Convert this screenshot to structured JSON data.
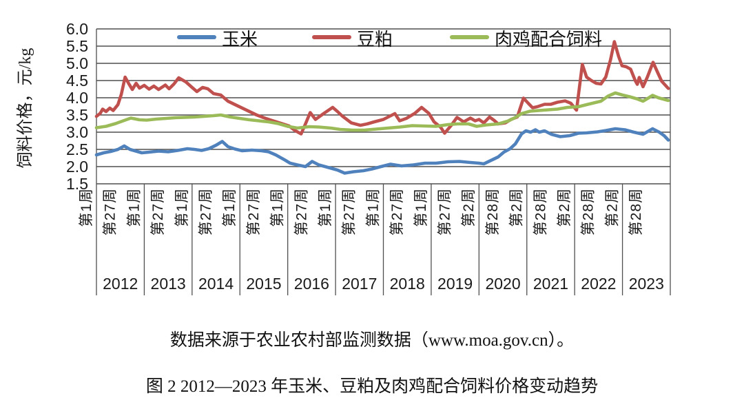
{
  "figure": {
    "background": "#ffffff",
    "grid_color": "#4f4f4f",
    "axis_color": "#4f4f4f"
  },
  "captions": {
    "source": "数据来源于农业农村部监测数据（www.moa.gov.cn）。",
    "figure": "图 2 2012—2023 年玉米、豆粕及肉鸡配合饲料价格变动趋势"
  },
  "chart_data": {
    "type": "line",
    "title": "",
    "ylabel": "饲料价格，元/kg",
    "xlabel": "",
    "ylim": [
      1.5,
      6.0
    ],
    "ytick_step": 0.5,
    "yticks": [
      "6.0",
      "5.5",
      "5.0",
      "4.5",
      "4.0",
      "3.5",
      "3.0",
      "2.5",
      "2.0",
      "1.5"
    ],
    "grid": true,
    "legend_position": "top",
    "x_unit": "year_decimal",
    "xlim": [
      2012,
      2024
    ],
    "x_week_tick_labels": [
      "第1周",
      "第27周",
      "第1周",
      "第27周",
      "第1周",
      "第27周",
      "第1周",
      "第27周",
      "第1周",
      "第27周",
      "第1周",
      "第27周",
      "第1周",
      "第27周",
      "第1周",
      "第27周",
      "第2周",
      "第28周",
      "第2周",
      "第28周",
      "第2周",
      "第28周",
      "第2周",
      "第28周"
    ],
    "x_year_labels": [
      "2012",
      "2013",
      "2014",
      "2015",
      "2016",
      "2017",
      "2018",
      "2019",
      "2020",
      "2021",
      "2022",
      "2023"
    ],
    "series": [
      {
        "name": "玉米",
        "key": "corn",
        "color": "#4F81BD",
        "points": [
          [
            2012.0,
            2.34
          ],
          [
            2012.15,
            2.4
          ],
          [
            2012.3,
            2.44
          ],
          [
            2012.45,
            2.5
          ],
          [
            2012.58,
            2.6
          ],
          [
            2012.7,
            2.5
          ],
          [
            2012.85,
            2.44
          ],
          [
            2012.95,
            2.4
          ],
          [
            2013.1,
            2.42
          ],
          [
            2013.3,
            2.45
          ],
          [
            2013.5,
            2.43
          ],
          [
            2013.7,
            2.47
          ],
          [
            2013.9,
            2.52
          ],
          [
            2014.05,
            2.5
          ],
          [
            2014.2,
            2.47
          ],
          [
            2014.35,
            2.52
          ],
          [
            2014.5,
            2.62
          ],
          [
            2014.63,
            2.73
          ],
          [
            2014.75,
            2.58
          ],
          [
            2014.9,
            2.51
          ],
          [
            2015.05,
            2.46
          ],
          [
            2015.25,
            2.48
          ],
          [
            2015.45,
            2.46
          ],
          [
            2015.6,
            2.43
          ],
          [
            2015.75,
            2.34
          ],
          [
            2015.93,
            2.2
          ],
          [
            2016.05,
            2.1
          ],
          [
            2016.2,
            2.05
          ],
          [
            2016.37,
            2.0
          ],
          [
            2016.51,
            2.15
          ],
          [
            2016.65,
            2.05
          ],
          [
            2016.86,
            1.97
          ],
          [
            2017.04,
            1.9
          ],
          [
            2017.19,
            1.81
          ],
          [
            2017.37,
            1.85
          ],
          [
            2017.58,
            1.88
          ],
          [
            2017.76,
            1.93
          ],
          [
            2017.95,
            2.0
          ],
          [
            2018.15,
            2.07
          ],
          [
            2018.38,
            2.02
          ],
          [
            2018.63,
            2.05
          ],
          [
            2018.87,
            2.1
          ],
          [
            2019.1,
            2.1
          ],
          [
            2019.35,
            2.14
          ],
          [
            2019.59,
            2.15
          ],
          [
            2019.82,
            2.12
          ],
          [
            2020.0,
            2.1
          ],
          [
            2020.1,
            2.08
          ],
          [
            2020.25,
            2.18
          ],
          [
            2020.4,
            2.28
          ],
          [
            2020.52,
            2.42
          ],
          [
            2020.65,
            2.52
          ],
          [
            2020.76,
            2.66
          ],
          [
            2020.89,
            2.95
          ],
          [
            2020.98,
            3.04
          ],
          [
            2021.08,
            3.0
          ],
          [
            2021.18,
            3.07
          ],
          [
            2021.26,
            3.0
          ],
          [
            2021.37,
            3.04
          ],
          [
            2021.51,
            2.94
          ],
          [
            2021.7,
            2.87
          ],
          [
            2021.9,
            2.9
          ],
          [
            2022.08,
            2.97
          ],
          [
            2022.25,
            2.98
          ],
          [
            2022.48,
            3.01
          ],
          [
            2022.66,
            3.05
          ],
          [
            2022.85,
            3.1
          ],
          [
            2023.05,
            3.07
          ],
          [
            2023.24,
            3.0
          ],
          [
            2023.43,
            2.94
          ],
          [
            2023.63,
            3.1
          ],
          [
            2023.77,
            3.0
          ],
          [
            2023.87,
            2.9
          ],
          [
            2023.96,
            2.77
          ]
        ]
      },
      {
        "name": "豆粕",
        "key": "soybean-meal",
        "color": "#C0504D",
        "points": [
          [
            2012.0,
            3.46
          ],
          [
            2012.08,
            3.55
          ],
          [
            2012.13,
            3.67
          ],
          [
            2012.2,
            3.6
          ],
          [
            2012.28,
            3.7
          ],
          [
            2012.35,
            3.63
          ],
          [
            2012.45,
            3.8
          ],
          [
            2012.52,
            4.1
          ],
          [
            2012.6,
            4.6
          ],
          [
            2012.68,
            4.4
          ],
          [
            2012.75,
            4.24
          ],
          [
            2012.83,
            4.42
          ],
          [
            2012.9,
            4.28
          ],
          [
            2013.0,
            4.36
          ],
          [
            2013.1,
            4.25
          ],
          [
            2013.2,
            4.34
          ],
          [
            2013.3,
            4.24
          ],
          [
            2013.44,
            4.37
          ],
          [
            2013.52,
            4.26
          ],
          [
            2013.62,
            4.4
          ],
          [
            2013.72,
            4.58
          ],
          [
            2013.87,
            4.46
          ],
          [
            2014.0,
            4.3
          ],
          [
            2014.1,
            4.18
          ],
          [
            2014.22,
            4.3
          ],
          [
            2014.33,
            4.26
          ],
          [
            2014.45,
            4.12
          ],
          [
            2014.6,
            4.08
          ],
          [
            2014.75,
            3.9
          ],
          [
            2014.9,
            3.8
          ],
          [
            2015.05,
            3.7
          ],
          [
            2015.2,
            3.6
          ],
          [
            2015.35,
            3.5
          ],
          [
            2015.5,
            3.42
          ],
          [
            2015.65,
            3.35
          ],
          [
            2015.85,
            3.26
          ],
          [
            2016.03,
            3.18
          ],
          [
            2016.15,
            3.05
          ],
          [
            2016.28,
            2.95
          ],
          [
            2016.37,
            3.24
          ],
          [
            2016.47,
            3.57
          ],
          [
            2016.58,
            3.37
          ],
          [
            2016.76,
            3.55
          ],
          [
            2016.94,
            3.72
          ],
          [
            2017.04,
            3.6
          ],
          [
            2017.14,
            3.47
          ],
          [
            2017.33,
            3.27
          ],
          [
            2017.52,
            3.2
          ],
          [
            2017.66,
            3.24
          ],
          [
            2017.81,
            3.3
          ],
          [
            2018.0,
            3.37
          ],
          [
            2018.24,
            3.54
          ],
          [
            2018.34,
            3.33
          ],
          [
            2018.48,
            3.4
          ],
          [
            2018.66,
            3.55
          ],
          [
            2018.8,
            3.72
          ],
          [
            2018.95,
            3.55
          ],
          [
            2019.06,
            3.3
          ],
          [
            2019.2,
            3.14
          ],
          [
            2019.28,
            2.97
          ],
          [
            2019.42,
            3.2
          ],
          [
            2019.54,
            3.43
          ],
          [
            2019.68,
            3.3
          ],
          [
            2019.82,
            3.41
          ],
          [
            2019.92,
            3.33
          ],
          [
            2020.0,
            3.37
          ],
          [
            2020.1,
            3.27
          ],
          [
            2020.22,
            3.44
          ],
          [
            2020.32,
            3.34
          ],
          [
            2020.4,
            3.24
          ],
          [
            2020.55,
            3.27
          ],
          [
            2020.67,
            3.37
          ],
          [
            2020.8,
            3.44
          ],
          [
            2020.93,
            3.99
          ],
          [
            2021.03,
            3.84
          ],
          [
            2021.12,
            3.71
          ],
          [
            2021.22,
            3.74
          ],
          [
            2021.37,
            3.81
          ],
          [
            2021.5,
            3.81
          ],
          [
            2021.64,
            3.87
          ],
          [
            2021.8,
            3.91
          ],
          [
            2021.92,
            3.84
          ],
          [
            2022.04,
            3.64
          ],
          [
            2022.16,
            4.97
          ],
          [
            2022.25,
            4.6
          ],
          [
            2022.35,
            4.5
          ],
          [
            2022.45,
            4.42
          ],
          [
            2022.55,
            4.4
          ],
          [
            2022.65,
            4.6
          ],
          [
            2022.75,
            5.1
          ],
          [
            2022.83,
            5.63
          ],
          [
            2022.92,
            5.2
          ],
          [
            2022.99,
            4.93
          ],
          [
            2023.08,
            4.9
          ],
          [
            2023.17,
            4.83
          ],
          [
            2023.27,
            4.49
          ],
          [
            2023.31,
            4.39
          ],
          [
            2023.35,
            4.59
          ],
          [
            2023.43,
            4.32
          ],
          [
            2023.52,
            4.6
          ],
          [
            2023.64,
            5.03
          ],
          [
            2023.73,
            4.75
          ],
          [
            2023.82,
            4.48
          ],
          [
            2023.96,
            4.27
          ]
        ]
      },
      {
        "name": "肉鸡配合饲料",
        "key": "broiler-feed",
        "color": "#9BBB59",
        "points": [
          [
            2012.0,
            3.13
          ],
          [
            2012.2,
            3.17
          ],
          [
            2012.4,
            3.25
          ],
          [
            2012.6,
            3.35
          ],
          [
            2012.72,
            3.41
          ],
          [
            2012.9,
            3.36
          ],
          [
            2013.05,
            3.35
          ],
          [
            2013.25,
            3.38
          ],
          [
            2013.45,
            3.4
          ],
          [
            2013.65,
            3.42
          ],
          [
            2013.85,
            3.43
          ],
          [
            2014.05,
            3.44
          ],
          [
            2014.25,
            3.46
          ],
          [
            2014.45,
            3.48
          ],
          [
            2014.6,
            3.5
          ],
          [
            2014.8,
            3.44
          ],
          [
            2015.0,
            3.4
          ],
          [
            2015.2,
            3.36
          ],
          [
            2015.4,
            3.33
          ],
          [
            2015.6,
            3.3
          ],
          [
            2015.8,
            3.25
          ],
          [
            2016.0,
            3.17
          ],
          [
            2016.2,
            3.12
          ],
          [
            2016.45,
            3.16
          ],
          [
            2016.65,
            3.15
          ],
          [
            2016.9,
            3.12
          ],
          [
            2017.1,
            3.08
          ],
          [
            2017.35,
            3.06
          ],
          [
            2017.6,
            3.06
          ],
          [
            2017.85,
            3.09
          ],
          [
            2018.1,
            3.12
          ],
          [
            2018.35,
            3.15
          ],
          [
            2018.6,
            3.19
          ],
          [
            2018.85,
            3.18
          ],
          [
            2019.1,
            3.17
          ],
          [
            2019.35,
            3.22
          ],
          [
            2019.55,
            3.24
          ],
          [
            2019.78,
            3.24
          ],
          [
            2019.95,
            3.17
          ],
          [
            2020.15,
            3.21
          ],
          [
            2020.4,
            3.24
          ],
          [
            2020.6,
            3.32
          ],
          [
            2020.75,
            3.42
          ],
          [
            2020.89,
            3.54
          ],
          [
            2021.07,
            3.61
          ],
          [
            2021.25,
            3.63
          ],
          [
            2021.45,
            3.65
          ],
          [
            2021.64,
            3.67
          ],
          [
            2021.85,
            3.72
          ],
          [
            2022.08,
            3.74
          ],
          [
            2022.25,
            3.8
          ],
          [
            2022.4,
            3.85
          ],
          [
            2022.55,
            3.9
          ],
          [
            2022.7,
            4.05
          ],
          [
            2022.85,
            4.14
          ],
          [
            2023.0,
            4.08
          ],
          [
            2023.15,
            4.03
          ],
          [
            2023.3,
            3.97
          ],
          [
            2023.43,
            3.9
          ],
          [
            2023.55,
            4.0
          ],
          [
            2023.63,
            4.07
          ],
          [
            2023.75,
            4.0
          ],
          [
            2023.96,
            3.92
          ]
        ]
      }
    ]
  }
}
